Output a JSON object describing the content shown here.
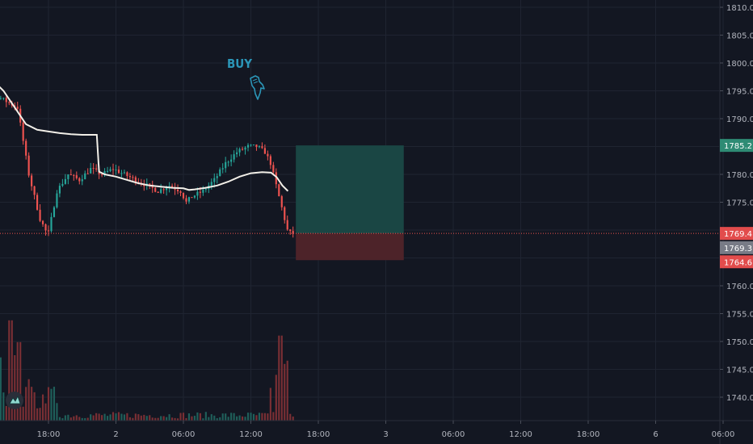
{
  "colors": {
    "background": "#131722",
    "grid": "#1f2431",
    "up": "#26a69a",
    "down": "#ef5350",
    "ma_line": "#f2efe8",
    "annotation": "#2b96b8",
    "target_zone": "#1a4644",
    "stop_zone": "#4d2329",
    "target_tag": "#2e8b74",
    "last_tag": "#e24c4c",
    "mid_tag": "#787b86",
    "stop_tag": "#e24c4c",
    "axis_text": "#b2b5be"
  },
  "annotation": {
    "text": "BUY",
    "icon": "hand-pointing-down-icon"
  },
  "logo": {
    "icon": "tradingview-logo-icon"
  },
  "price_tags": {
    "target": "1785.2",
    "last": "1769.4",
    "mid": "1769.3",
    "stop": "1764.6"
  },
  "chart_data": {
    "type": "candlestick",
    "y_axis": {
      "side": "right",
      "range": [
        1737,
        1811
      ],
      "ticks": [
        "1810.0",
        "1805.0",
        "1800.0",
        "1795.0",
        "1790.0",
        "1785.0",
        "1780.0",
        "1775.0",
        "1770.0",
        "1765.0",
        "1760.0",
        "1755.0",
        "1750.0",
        "1745.0",
        "1740.0"
      ]
    },
    "x_axis": {
      "ticks": [
        "18:00",
        "2",
        "06:00",
        "12:00",
        "18:00",
        "3",
        "06:00",
        "12:00",
        "18:00",
        "6",
        "06:00"
      ],
      "tick_hours": [
        18,
        24,
        30,
        36,
        42,
        48,
        54,
        60,
        66,
        72,
        78
      ]
    },
    "grid": true,
    "price_path": [
      [
        11,
        1797
      ],
      [
        15.5,
        1792
      ],
      [
        16.5,
        1780
      ],
      [
        17.5,
        1772
      ],
      [
        18.2,
        1769
      ],
      [
        19,
        1777
      ],
      [
        20,
        1780
      ],
      [
        21,
        1779
      ],
      [
        22,
        1781
      ],
      [
        23,
        1780
      ],
      [
        24,
        1781
      ],
      [
        25,
        1780
      ],
      [
        26,
        1779
      ],
      [
        27,
        1778
      ],
      [
        28,
        1777
      ],
      [
        29,
        1778
      ],
      [
        30,
        1777
      ],
      [
        30.5,
        1775
      ],
      [
        31,
        1776
      ],
      [
        32,
        1777
      ],
      [
        33,
        1779
      ],
      [
        34,
        1782
      ],
      [
        35,
        1784
      ],
      [
        36,
        1785
      ],
      [
        36.8,
        1785
      ],
      [
        37.5,
        1784
      ],
      [
        38,
        1782
      ],
      [
        38.5,
        1778
      ],
      [
        39,
        1774
      ],
      [
        39.5,
        1770
      ],
      [
        39.8,
        1769.4
      ]
    ],
    "ma_line": [
      [
        11,
        1800
      ],
      [
        12,
        1799
      ],
      [
        13,
        1797
      ],
      [
        14,
        1795
      ],
      [
        15,
        1792
      ],
      [
        16,
        1789
      ],
      [
        17,
        1788
      ],
      [
        18,
        1787.7
      ],
      [
        19,
        1787.4
      ],
      [
        20,
        1787.2
      ],
      [
        21,
        1787.1
      ],
      [
        22,
        1787.1
      ],
      [
        22.3,
        1787.1
      ],
      [
        22.5,
        1780.5
      ],
      [
        23,
        1780
      ],
      [
        24,
        1779.6
      ],
      [
        25,
        1779
      ],
      [
        26,
        1778.4
      ],
      [
        27,
        1778
      ],
      [
        28,
        1777.8
      ],
      [
        29,
        1777.6
      ],
      [
        30,
        1777.5
      ],
      [
        30.5,
        1777.2
      ],
      [
        31,
        1777.3
      ],
      [
        32,
        1777.6
      ],
      [
        33,
        1778
      ],
      [
        34,
        1778.7
      ],
      [
        35,
        1779.6
      ],
      [
        36,
        1780.2
      ],
      [
        37,
        1780.4
      ],
      [
        37.8,
        1780.3
      ],
      [
        38.3,
        1779.5
      ],
      [
        38.8,
        1778
      ],
      [
        39.3,
        1777
      ]
    ],
    "volume": {
      "max": 100,
      "spikes": [
        [
          11.3,
          60
        ],
        [
          12.2,
          82
        ],
        [
          13.2,
          74
        ],
        [
          13.8,
          58
        ],
        [
          14.6,
          92
        ],
        [
          15.1,
          60
        ],
        [
          15.4,
          72
        ],
        [
          16.2,
          38
        ],
        [
          16.8,
          26
        ],
        [
          17.5,
          24
        ],
        [
          37.8,
          30
        ],
        [
          38.2,
          42
        ],
        [
          38.6,
          78
        ],
        [
          39.0,
          52
        ],
        [
          39.3,
          55
        ]
      ]
    },
    "position": {
      "entry": 1769.4,
      "target": 1785.2,
      "stop": 1764.6,
      "start_hour": 40.0,
      "end_hour": 49.6
    },
    "last_price": 1769.4
  }
}
